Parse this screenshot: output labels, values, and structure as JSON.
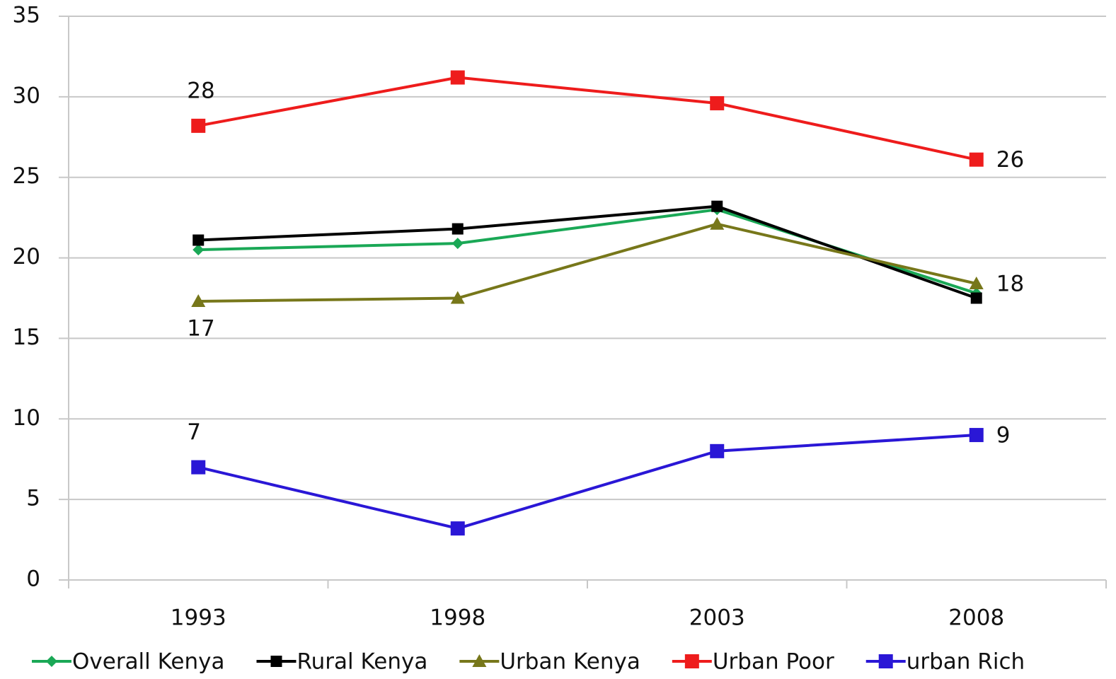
{
  "chart_data": {
    "type": "line",
    "categories": [
      "1993",
      "1998",
      "2003",
      "2008"
    ],
    "series": [
      {
        "name": "Overall Kenya",
        "color": "#1aa856",
        "marker": "diamond",
        "values": [
          20.5,
          20.9,
          23.0,
          17.8
        ]
      },
      {
        "name": "Rural Kenya",
        "color": "#000000",
        "marker": "square",
        "values": [
          21.1,
          21.8,
          23.2,
          17.5
        ]
      },
      {
        "name": "Urban Kenya",
        "color": "#77771a",
        "marker": "triangle",
        "values": [
          17.3,
          17.5,
          22.1,
          18.4
        ],
        "value_labels": [
          "17",
          null,
          null,
          "18"
        ]
      },
      {
        "name": "Urban Poor",
        "color": "#ee1c1c",
        "marker": "square",
        "values": [
          28.2,
          31.2,
          29.6,
          26.1
        ],
        "value_labels": [
          "28",
          null,
          null,
          "26"
        ]
      },
      {
        "name": "urban Rich",
        "color": "#2a17d6",
        "marker": "square",
        "values": [
          7.0,
          3.2,
          8.0,
          9.0
        ],
        "value_labels": [
          "7",
          null,
          null,
          "9"
        ]
      }
    ],
    "ylim": [
      0,
      35
    ],
    "yticks": [
      0,
      5,
      10,
      15,
      20,
      25,
      30,
      35
    ],
    "grid": true,
    "legend": "bottom"
  }
}
